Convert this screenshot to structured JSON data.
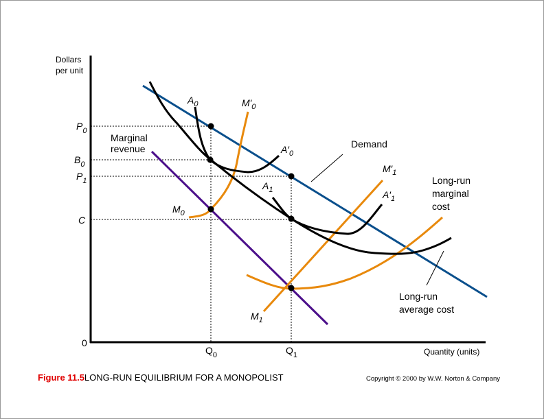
{
  "axes": {
    "y_label_line1": "Dollars",
    "y_label_line2": "per unit",
    "x_label": "Quantity (units)",
    "origin": "0"
  },
  "y_ticks": [
    {
      "name": "P",
      "sub": "0"
    },
    {
      "name": "B",
      "sub": "0"
    },
    {
      "name": "P",
      "sub": "1"
    },
    {
      "name": "C",
      "sub": ""
    }
  ],
  "x_ticks": [
    {
      "name": "Q",
      "sub": "0"
    },
    {
      "name": "Q",
      "sub": "1"
    }
  ],
  "curve_labels": {
    "mr_line1": "Marginal",
    "mr_line2": "revenue",
    "demand": "Demand",
    "lrmc_line1": "Long-run",
    "lrmc_line2": "marginal",
    "lrmc_line3": "cost",
    "lrac_line1": "Long-run",
    "lrac_line2": "average cost",
    "a0": {
      "name": "A",
      "sub": "0"
    },
    "a0p": {
      "name": "A′",
      "sub": "0"
    },
    "a1": {
      "name": "A",
      "sub": "1"
    },
    "a1p": {
      "name": "A′",
      "sub": "1"
    },
    "m0": {
      "name": "M",
      "sub": "0"
    },
    "m0p": {
      "name": "M′",
      "sub": "0"
    },
    "m1": {
      "name": "M",
      "sub": "1"
    },
    "m1p": {
      "name": "M′",
      "sub": "1"
    }
  },
  "caption": {
    "figure": "Figure 11.5",
    "title": "LONG-RUN EQUILIBRIUM FOR A MONOPOLIST"
  },
  "copyright": "Copyright © 2000 by W.W. Norton & Company",
  "colors": {
    "demand": "#0a4f8c",
    "marginal_revenue": "#4b0f8a",
    "cost_curves": "#000000",
    "marginal_cost": "#e8890c",
    "figure_label": "#e00000"
  }
}
